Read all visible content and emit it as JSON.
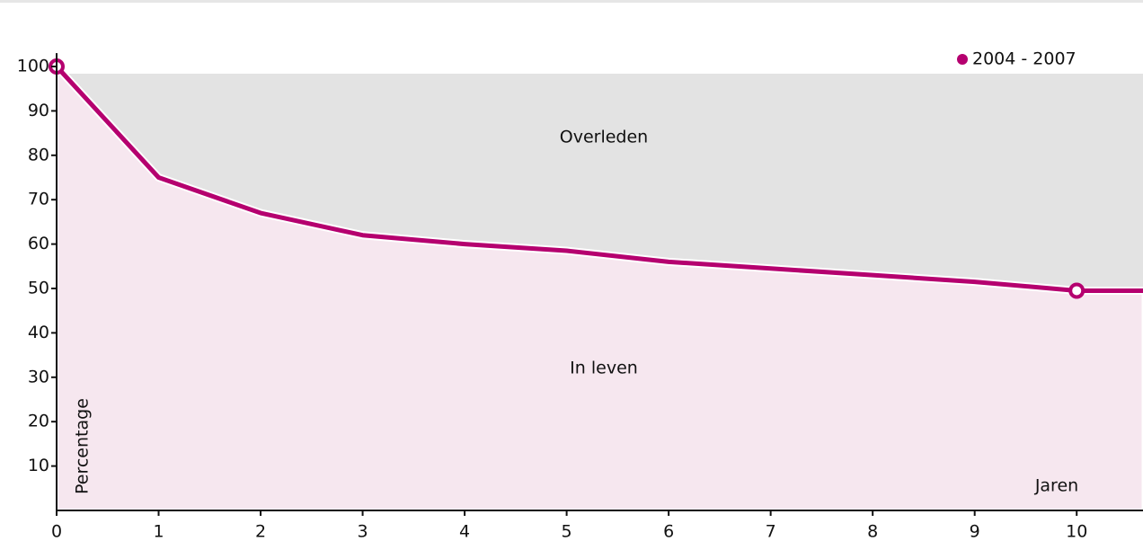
{
  "chart_data": {
    "type": "line",
    "x": [
      0,
      1,
      2,
      3,
      4,
      5,
      6,
      7,
      8,
      9,
      10,
      10.65
    ],
    "series": [
      {
        "name": "2004 - 2007",
        "color": "#b5006f",
        "values": [
          100,
          75,
          67,
          62,
          60,
          58.5,
          56,
          54.5,
          53,
          51.5,
          49.5,
          49.5
        ]
      }
    ],
    "xlim": [
      0,
      10.65
    ],
    "ylim": [
      0,
      103
    ],
    "xticks": [
      0,
      1,
      2,
      3,
      4,
      5,
      6,
      7,
      8,
      9,
      10
    ],
    "yticks": [
      10,
      20,
      30,
      40,
      50,
      60,
      70,
      80,
      90,
      100
    ],
    "ylabel": "Percentage",
    "xlabel": "Jaren",
    "annotations": [
      "Overleden",
      "In leven"
    ],
    "legend": "top-right"
  }
}
